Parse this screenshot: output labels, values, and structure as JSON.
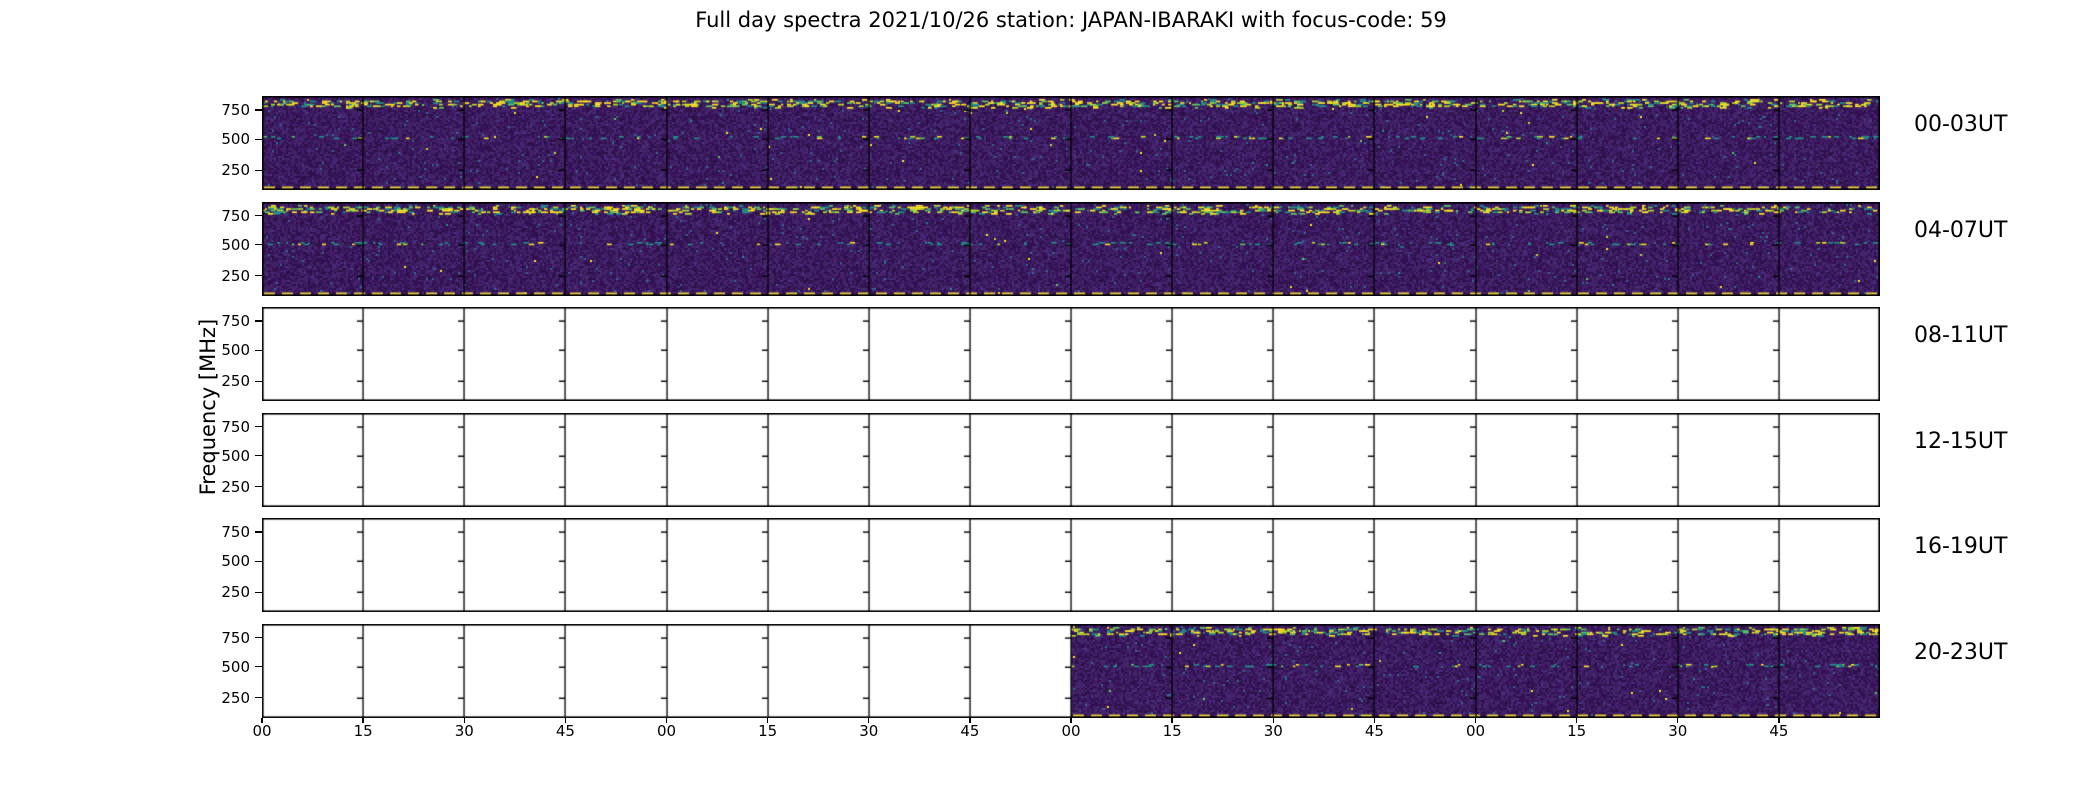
{
  "figure": {
    "title": "Full day spectra 2021/10/26 station: JAPAN-IBARAKI with focus-code: 59",
    "y_axis_label": "Frequency [MHz]"
  },
  "chart_data": {
    "type": "heatmap",
    "title": "Full day spectra 2021/10/26 station: JAPAN-IBARAKI with focus-code: 59",
    "xlabel": "",
    "ylabel": "Frequency [MHz]",
    "y_tick_labels": [
      "750",
      "500",
      "250"
    ],
    "y_tick_fracs_from_top": [
      0.15,
      0.46,
      0.79
    ],
    "x_tick_labels": [
      "00",
      "15",
      "30",
      "45",
      "00",
      "15",
      "30",
      "45",
      "00",
      "15",
      "30",
      "45",
      "00",
      "15",
      "30",
      "45"
    ],
    "columns_per_row": 16,
    "minutes_per_column": 15,
    "grid": "vertical black boundary every 15-minute sub-column, each with 3 left-pointing y-ticks",
    "legend_position": "none",
    "rows": [
      {
        "label": "00-03UT",
        "has_data": true,
        "data_start_frac": 0.0,
        "data_end_frac": 1.0
      },
      {
        "label": "04-07UT",
        "has_data": true,
        "data_start_frac": 0.0,
        "data_end_frac": 1.0
      },
      {
        "label": "08-11UT",
        "has_data": false,
        "data_start_frac": 0,
        "data_end_frac": 0
      },
      {
        "label": "12-15UT",
        "has_data": false,
        "data_start_frac": 0,
        "data_end_frac": 0
      },
      {
        "label": "16-19UT",
        "has_data": false,
        "data_start_frac": 0,
        "data_end_frac": 0
      },
      {
        "label": "20-23UT",
        "has_data": true,
        "data_start_frac": 0.5,
        "data_end_frac": 1.0
      }
    ],
    "data_features": {
      "background": "dark viridis spectrogram noise",
      "bright_speckle_band_mhz": 790,
      "bright_speckle_band_frac_from_top": 0.085,
      "narrow_speckle_line_mhz": 500,
      "narrow_speckle_line_frac_from_top": 0.44,
      "bottom_marker": "yellow dashed line along bottom edge of data regions"
    },
    "colors": {
      "figure_background": "#ffffff",
      "axis": "#000000",
      "noise_base": [
        "#2d1048",
        "#341553",
        "#3a1b5c",
        "#3e1f63",
        "#44246b",
        "#452470",
        "#380f5b"
      ],
      "noise_light": "#46327e",
      "noise_blue": "#31688e",
      "speckle_yellow": "#fde725",
      "speckle_lime": "#b5de2b",
      "speckle_green": "#5ec962",
      "speckle_teal": "#21918c",
      "dashed_line": "#e9d23f"
    }
  }
}
